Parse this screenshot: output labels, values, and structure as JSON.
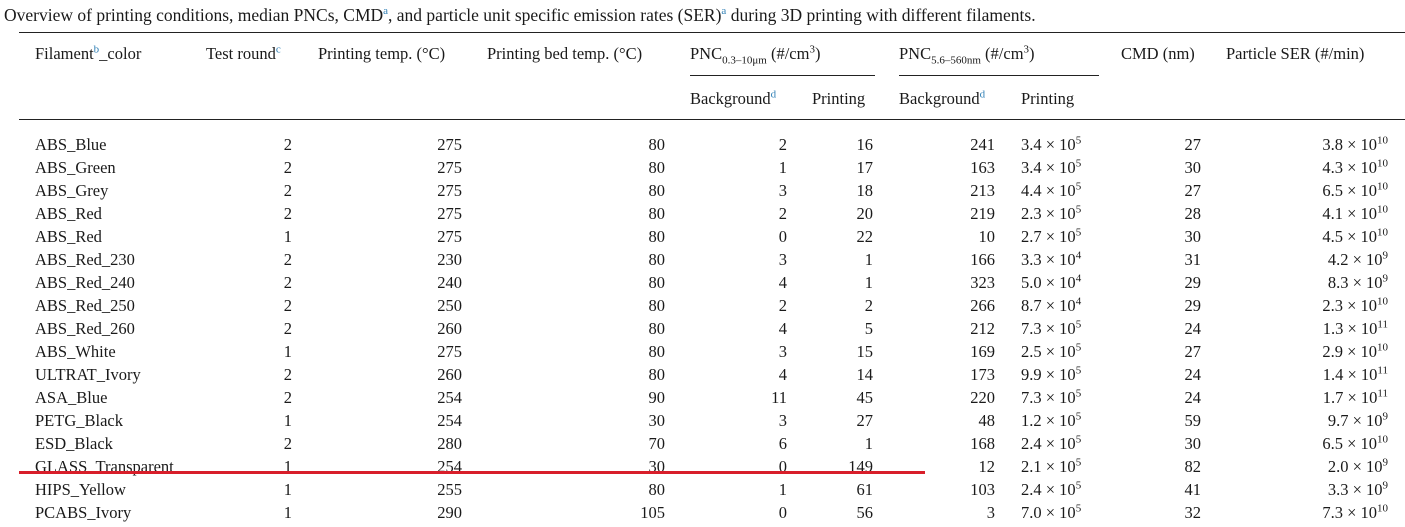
{
  "caption": {
    "before_cmd": "Overview of printing conditions, median PNCs, CMD",
    "note_cmd": "a",
    "after_cmd": ", and particle unit specific emission rates (SER)",
    "note_ser": "a",
    "after_ser": " during 3D printing with different filaments."
  },
  "headers": {
    "filament_pre": "Filament",
    "filament_note": "b",
    "filament_post": "_color",
    "test_round": "Test round",
    "test_round_note": "c",
    "print_temp": "Printing temp. (°C)",
    "bed_temp": "Printing bed temp. (°C)",
    "pnc1_main": "PNC",
    "pnc1_sub": "0.3–10μm",
    "pnc1_unit": " (#/cm",
    "pnc1_exp": "3",
    "pnc1_close": ")",
    "pnc2_main": "PNC",
    "pnc2_sub": "5.6–560nm",
    "pnc2_unit": " (#/cm",
    "pnc2_exp": "3",
    "pnc2_close": ")",
    "cmd": "CMD (nm)",
    "ser": "Particle SER (#/min)",
    "background": "Background",
    "background_note": "d",
    "printing": "Printing"
  },
  "rows": [
    {
      "filament": "ABS_Blue",
      "round": "2",
      "ptemp": "275",
      "btemp": "80",
      "bg1": "2",
      "pr1": "16",
      "bg2": "241",
      "m2": "3.4 × 10",
      "e2": "5",
      "cmd": "27",
      "msr": "3.8 × 10",
      "esr": "10"
    },
    {
      "filament": "ABS_Green",
      "round": "2",
      "ptemp": "275",
      "btemp": "80",
      "bg1": "1",
      "pr1": "17",
      "bg2": "163",
      "m2": "3.4 × 10",
      "e2": "5",
      "cmd": "30",
      "msr": "4.3 × 10",
      "esr": "10"
    },
    {
      "filament": "ABS_Grey",
      "round": "2",
      "ptemp": "275",
      "btemp": "80",
      "bg1": "3",
      "pr1": "18",
      "bg2": "213",
      "m2": "4.4 × 10",
      "e2": "5",
      "cmd": "27",
      "msr": "6.5 × 10",
      "esr": "10"
    },
    {
      "filament": "ABS_Red",
      "round": "2",
      "ptemp": "275",
      "btemp": "80",
      "bg1": "2",
      "pr1": "20",
      "bg2": "219",
      "m2": "2.3 × 10",
      "e2": "5",
      "cmd": "28",
      "msr": "4.1 × 10",
      "esr": "10"
    },
    {
      "filament": "ABS_Red",
      "round": "1",
      "ptemp": "275",
      "btemp": "80",
      "bg1": "0",
      "pr1": "22",
      "bg2": "10",
      "m2": "2.7 × 10",
      "e2": "5",
      "cmd": "30",
      "msr": "4.5 × 10",
      "esr": "10"
    },
    {
      "filament": "ABS_Red_230",
      "round": "2",
      "ptemp": "230",
      "btemp": "80",
      "bg1": "3",
      "pr1": "1",
      "bg2": "166",
      "m2": "3.3 × 10",
      "e2": "4",
      "cmd": "31",
      "msr": "4.2 × 10",
      "esr": "9"
    },
    {
      "filament": "ABS_Red_240",
      "round": "2",
      "ptemp": "240",
      "btemp": "80",
      "bg1": "4",
      "pr1": "1",
      "bg2": "323",
      "m2": "5.0 × 10",
      "e2": "4",
      "cmd": "29",
      "msr": "8.3 × 10",
      "esr": "9"
    },
    {
      "filament": "ABS_Red_250",
      "round": "2",
      "ptemp": "250",
      "btemp": "80",
      "bg1": "2",
      "pr1": "2",
      "bg2": "266",
      "m2": "8.7 × 10",
      "e2": "4",
      "cmd": "29",
      "msr": "2.3 × 10",
      "esr": "10"
    },
    {
      "filament": "ABS_Red_260",
      "round": "2",
      "ptemp": "260",
      "btemp": "80",
      "bg1": "4",
      "pr1": "5",
      "bg2": "212",
      "m2": "7.3 × 10",
      "e2": "5",
      "cmd": "24",
      "msr": "1.3 × 10",
      "esr": "11"
    },
    {
      "filament": "ABS_White",
      "round": "1",
      "ptemp": "275",
      "btemp": "80",
      "bg1": "3",
      "pr1": "15",
      "bg2": "169",
      "m2": "2.5 × 10",
      "e2": "5",
      "cmd": "27",
      "msr": "2.9 × 10",
      "esr": "10"
    },
    {
      "filament": "ULTRAT_Ivory",
      "round": "2",
      "ptemp": "260",
      "btemp": "80",
      "bg1": "4",
      "pr1": "14",
      "bg2": "173",
      "m2": "9.9 × 10",
      "e2": "5",
      "cmd": "24",
      "msr": "1.4 × 10",
      "esr": "11"
    },
    {
      "filament": "ASA_Blue",
      "round": "2",
      "ptemp": "254",
      "btemp": "90",
      "bg1": "11",
      "pr1": "45",
      "bg2": "220",
      "m2": "7.3 × 10",
      "e2": "5",
      "cmd": "24",
      "msr": "1.7 × 10",
      "esr": "11"
    },
    {
      "filament": "PETG_Black",
      "round": "1",
      "ptemp": "254",
      "btemp": "30",
      "bg1": "3",
      "pr1": "27",
      "bg2": "48",
      "m2": "1.2 × 10",
      "e2": "5",
      "cmd": "59",
      "msr": "9.7 × 10",
      "esr": "9"
    },
    {
      "filament": "ESD_Black",
      "round": "2",
      "ptemp": "280",
      "btemp": "70",
      "bg1": "6",
      "pr1": "1",
      "bg2": "168",
      "m2": "2.4 × 10",
      "e2": "5",
      "cmd": "30",
      "msr": "6.5 × 10",
      "esr": "10"
    },
    {
      "filament": "GLASS_Transparent",
      "round": "1",
      "ptemp": "254",
      "btemp": "30",
      "bg1": "0",
      "pr1": "149",
      "bg2": "12",
      "m2": "2.1 × 10",
      "e2": "5",
      "cmd": "82",
      "msr": "2.0 × 10",
      "esr": "9"
    },
    {
      "filament": "HIPS_Yellow",
      "round": "1",
      "ptemp": "255",
      "btemp": "80",
      "bg1": "1",
      "pr1": "61",
      "bg2": "103",
      "m2": "2.4 × 10",
      "e2": "5",
      "cmd": "41",
      "msr": "3.3 × 10",
      "esr": "9"
    },
    {
      "filament": "PCABS_Ivory",
      "round": "1",
      "ptemp": "290",
      "btemp": "105",
      "bg1": "0",
      "pr1": "56",
      "bg2": "3",
      "m2": "7.0 × 10",
      "e2": "5",
      "cmd": "32",
      "msr": "7.3 × 10",
      "esr": "10"
    }
  ],
  "colors": {
    "note_link": "#2f7fb5",
    "highlight_line": "#d81e2a"
  }
}
